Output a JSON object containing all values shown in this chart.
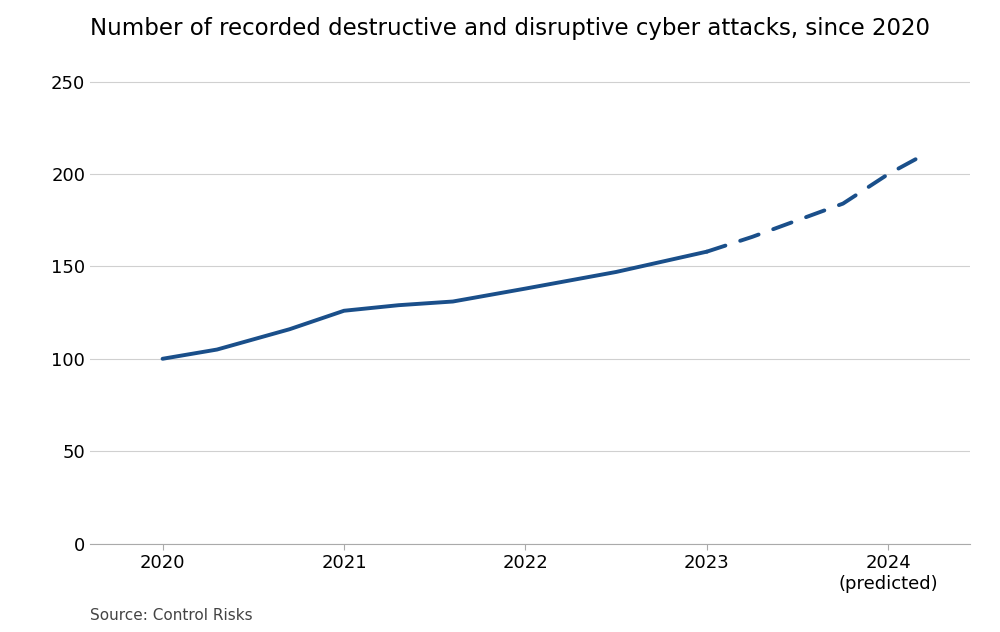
{
  "title": "Number of recorded destructive and disruptive cyber attacks, since 2020",
  "source": "Source: Control Risks",
  "solid_x": [
    2020,
    2020.3,
    2020.7,
    2021,
    2021.3,
    2021.6,
    2022,
    2022.5,
    2023
  ],
  "solid_y": [
    100,
    105,
    116,
    126,
    129,
    131,
    138,
    147,
    158
  ],
  "dashed_x": [
    2023,
    2023.25,
    2023.5,
    2023.75,
    2024,
    2024.15
  ],
  "dashed_y": [
    158,
    166,
    175,
    184,
    200,
    208
  ],
  "line_color": "#1a4f8a",
  "xticks": [
    2020,
    2021,
    2022,
    2023,
    2024
  ],
  "xticklabels": [
    "2020",
    "2021",
    "2022",
    "2023",
    "2024\n(predicted)"
  ],
  "xlim": [
    2019.6,
    2024.45
  ],
  "ylim": [
    0,
    260
  ],
  "yticks": [
    0,
    50,
    100,
    150,
    200,
    250
  ],
  "background_color": "#ffffff",
  "grid_color": "#d0d0d0",
  "title_fontsize": 16.5,
  "tick_fontsize": 13,
  "source_fontsize": 11,
  "line_width": 2.8
}
